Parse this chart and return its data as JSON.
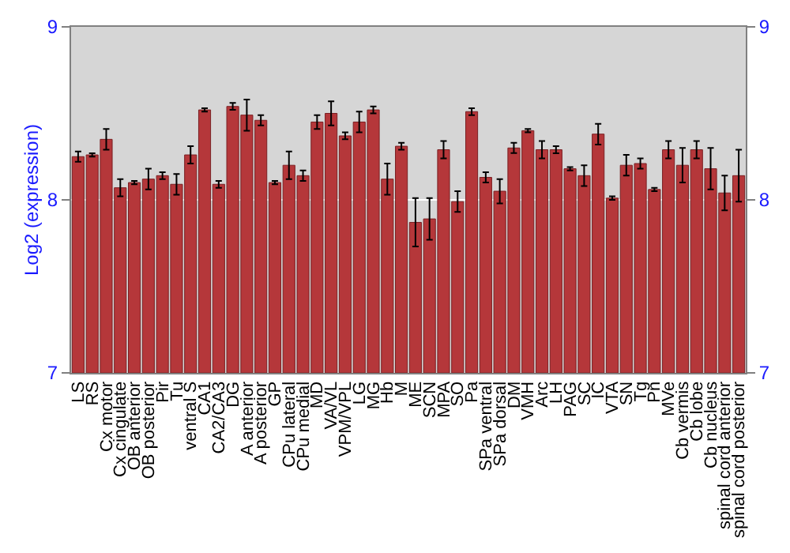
{
  "chart_data": {
    "type": "bar",
    "ylabel": "Log2 (expression)",
    "categories": [
      "LS",
      "RS",
      "Cx motor",
      "Cx cingulate",
      "OB anterior",
      "OB posterior",
      "Pir",
      "Tu",
      "ventral S",
      "CA1",
      "CA2/CA3",
      "DG",
      "A anterior",
      "A posterior",
      "GP",
      "CPu lateral",
      "CPu medial",
      "MD",
      "VA/VL",
      "VPM/VPL",
      "LG",
      "MG",
      "Hb",
      "M",
      "ME",
      "SCN",
      "MPA",
      "SO",
      "Pa",
      "SPa ventral",
      "SPa dorsal",
      "DM",
      "VMH",
      "Arc",
      "LH",
      "PAG",
      "SC",
      "IC",
      "VTA",
      "SN",
      "Tg",
      "Pn",
      "MVe",
      "Cb vermis",
      "Cb lobe",
      "Cb nucleus",
      "spinal cord anterior",
      "spinal cord posterior"
    ],
    "values": [
      8.25,
      8.26,
      8.35,
      8.07,
      8.1,
      8.12,
      8.14,
      8.09,
      8.26,
      8.52,
      8.09,
      8.54,
      8.49,
      8.46,
      8.1,
      8.2,
      8.14,
      8.45,
      8.5,
      8.37,
      8.45,
      8.52,
      8.12,
      8.31,
      7.87,
      7.89,
      8.29,
      7.99,
      8.51,
      8.13,
      8.05,
      8.3,
      8.4,
      8.29,
      8.29,
      8.18,
      8.14,
      8.38,
      8.01,
      8.2,
      8.21,
      8.06,
      8.29,
      8.2,
      8.29,
      8.18,
      8.04,
      8.14
    ],
    "errors": [
      0.03,
      0.01,
      0.06,
      0.05,
      0.01,
      0.06,
      0.02,
      0.06,
      0.05,
      0.01,
      0.02,
      0.02,
      0.09,
      0.03,
      0.01,
      0.08,
      0.03,
      0.04,
      0.07,
      0.02,
      0.06,
      0.02,
      0.09,
      0.02,
      0.14,
      0.12,
      0.05,
      0.06,
      0.02,
      0.03,
      0.07,
      0.03,
      0.01,
      0.05,
      0.02,
      0.01,
      0.06,
      0.06,
      0.01,
      0.06,
      0.03,
      0.01,
      0.05,
      0.1,
      0.05,
      0.12,
      0.1,
      0.15
    ],
    "color": "#b5373a",
    "ylim": [
      7,
      9
    ],
    "yticks": [
      7,
      8,
      9
    ],
    "y2lim": [
      7,
      9
    ],
    "y2ticks": [
      7,
      8,
      9
    ],
    "grid": "y"
  }
}
